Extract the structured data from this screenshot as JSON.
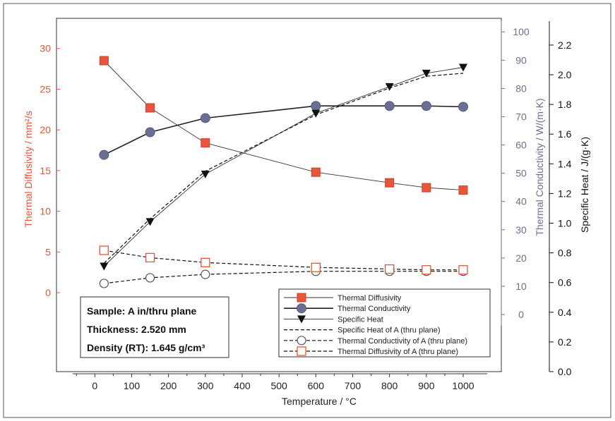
{
  "chart_data": {
    "type": "line",
    "title": "",
    "xlabel": "Temperature / °C",
    "x_ticks": [
      0,
      100,
      200,
      300,
      400,
      500,
      600,
      700,
      800,
      900,
      1000
    ],
    "xlim": [
      -60,
      1080
    ],
    "axes": {
      "left": {
        "label": "Thermal Diffusivity / mm²/s",
        "ticks": [
          0,
          5,
          10,
          15,
          20,
          25,
          30
        ],
        "range": [
          -9.7,
          33.7
        ],
        "color": "#e8553a"
      },
      "right1": {
        "label": "Thermal Conductivity / W/(m·K)",
        "ticks": [
          0,
          10,
          20,
          30,
          40,
          50,
          60,
          70,
          80,
          90,
          100
        ],
        "range": [
          -20.2,
          104.8
        ],
        "color": "#6b6f94"
      },
      "right2": {
        "label": "Specific Heat / J/(g·K)",
        "ticks": [
          "0.0",
          "0.2",
          "0.4",
          "0.6",
          "0.8",
          "1.0",
          "1.2",
          "1.4",
          "1.6",
          "1.8",
          "2.0",
          "2.2"
        ],
        "range": [
          0,
          2.38
        ],
        "color": "#111111"
      }
    },
    "series": [
      {
        "name": "Thermal Diffusivity",
        "axis": "left",
        "x": [
          25,
          150,
          300,
          600,
          800,
          900,
          1000
        ],
        "y": [
          28.5,
          22.7,
          18.4,
          14.8,
          13.5,
          12.9,
          12.6
        ],
        "marker": "square-filled",
        "line": "solid-thin",
        "color": "#e8553a"
      },
      {
        "name": "Thermal Conductivity",
        "axis": "right1",
        "x": [
          25,
          150,
          300,
          600,
          800,
          900,
          1000
        ],
        "y": [
          56.5,
          64.5,
          69.5,
          73.8,
          73.8,
          73.8,
          73.5
        ],
        "marker": "circle-filled",
        "line": "solid-thick",
        "color": "#6b6f94"
      },
      {
        "name": "Specific Heat",
        "axis": "right2",
        "x": [
          25,
          150,
          300,
          600,
          800,
          900,
          1000
        ],
        "y": [
          0.71,
          1.01,
          1.33,
          1.74,
          1.92,
          2.01,
          2.05
        ],
        "marker": "triangle-down-filled",
        "line": "solid-thin",
        "color": "#111111"
      },
      {
        "name": "Specific Heat of A (thru plane)",
        "axis": "right2",
        "x": [
          25,
          150,
          300,
          600,
          800,
          900,
          1000
        ],
        "y": [
          0.73,
          1.03,
          1.35,
          1.73,
          1.91,
          1.99,
          2.01
        ],
        "marker": "none",
        "line": "dashed",
        "color": "#111111"
      },
      {
        "name": "Thermal Conductivity of A (thru plane)",
        "axis": "right1",
        "x": [
          25,
          150,
          300,
          600,
          800,
          900,
          1000
        ],
        "y": [
          11,
          13,
          14.2,
          15.3,
          15.3,
          15.3,
          15.3
        ],
        "marker": "circle-open",
        "line": "dashed",
        "color": "#111111"
      },
      {
        "name": "Thermal Diffusivity of A (thru plane)",
        "axis": "left",
        "x": [
          25,
          150,
          300,
          600,
          800,
          900,
          1000
        ],
        "y": [
          5.2,
          4.3,
          3.7,
          3.1,
          2.9,
          2.8,
          2.8
        ],
        "marker": "square-open",
        "line": "dashed",
        "color": "#e8553a"
      }
    ],
    "legend": {
      "placement": "bottom-right"
    },
    "grid": false
  },
  "sample_info": {
    "line1": "Sample: A in/thru plane",
    "line2": "Thickness: 2.520 mm",
    "line3": "Density (RT): 1.645 g/cm³"
  }
}
